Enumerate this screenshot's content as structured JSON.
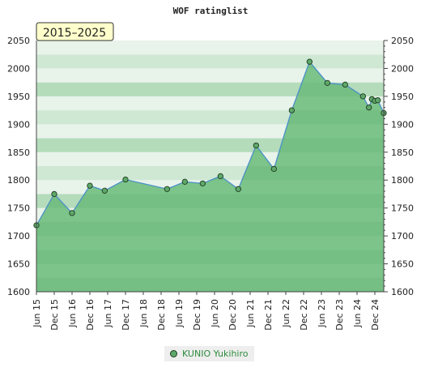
{
  "chart_data": {
    "type": "area",
    "title": "WOF ratinglist",
    "period_label": "2015–2025",
    "ylim": [
      1600,
      2050
    ],
    "y_ticks": [
      1600,
      1650,
      1700,
      1750,
      1800,
      1850,
      1900,
      1950,
      2000,
      2050
    ],
    "x_start": "2015-06",
    "x_end": "2025-03",
    "x_tick_labels": [
      "Jun 15",
      "Dec 15",
      "Jun 16",
      "Dec 16",
      "Jun 17",
      "Dec 17",
      "Jun 18",
      "Dec 18",
      "Jun 19",
      "Dec 19",
      "Jun 20",
      "Dec 20",
      "Jun 21",
      "Dec 21",
      "Jun 22",
      "Dec 22",
      "Jun 23",
      "Dec 23",
      "Jun 24",
      "Dec 24"
    ],
    "series": [
      {
        "name": "KUNIO Yukihiro",
        "color": "#5fa86a",
        "points": [
          {
            "x": "2015-06",
            "y": 1719
          },
          {
            "x": "2015-12",
            "y": 1775
          },
          {
            "x": "2016-06",
            "y": 1741
          },
          {
            "x": "2016-12",
            "y": 1790
          },
          {
            "x": "2017-05",
            "y": 1781
          },
          {
            "x": "2017-12",
            "y": 1801
          },
          {
            "x": "2019-02",
            "y": 1784
          },
          {
            "x": "2019-08",
            "y": 1797
          },
          {
            "x": "2020-02",
            "y": 1794
          },
          {
            "x": "2020-08",
            "y": 1807
          },
          {
            "x": "2021-02",
            "y": 1784
          },
          {
            "x": "2021-08",
            "y": 1862
          },
          {
            "x": "2022-02",
            "y": 1820
          },
          {
            "x": "2022-08",
            "y": 1925
          },
          {
            "x": "2023-02",
            "y": 2012
          },
          {
            "x": "2023-08",
            "y": 1974
          },
          {
            "x": "2024-02",
            "y": 1971
          },
          {
            "x": "2024-08",
            "y": 1950
          },
          {
            "x": "2024-10",
            "y": 1930
          },
          {
            "x": "2024-11",
            "y": 1945
          },
          {
            "x": "2024-12",
            "y": 1942
          },
          {
            "x": "2025-01",
            "y": 1943
          },
          {
            "x": "2025-03",
            "y": 1920
          }
        ]
      }
    ],
    "grid": true,
    "legend_position": "bottom-center",
    "colors": {
      "band_light": "#e8f3ea",
      "band_mid": "#cfe8d4",
      "band_dark": "#b4dcbb",
      "area_fill": "#7cc48a",
      "line": "#4a90c8",
      "marker": "#5fa86a",
      "badge_bg": "#ffffcc"
    }
  }
}
